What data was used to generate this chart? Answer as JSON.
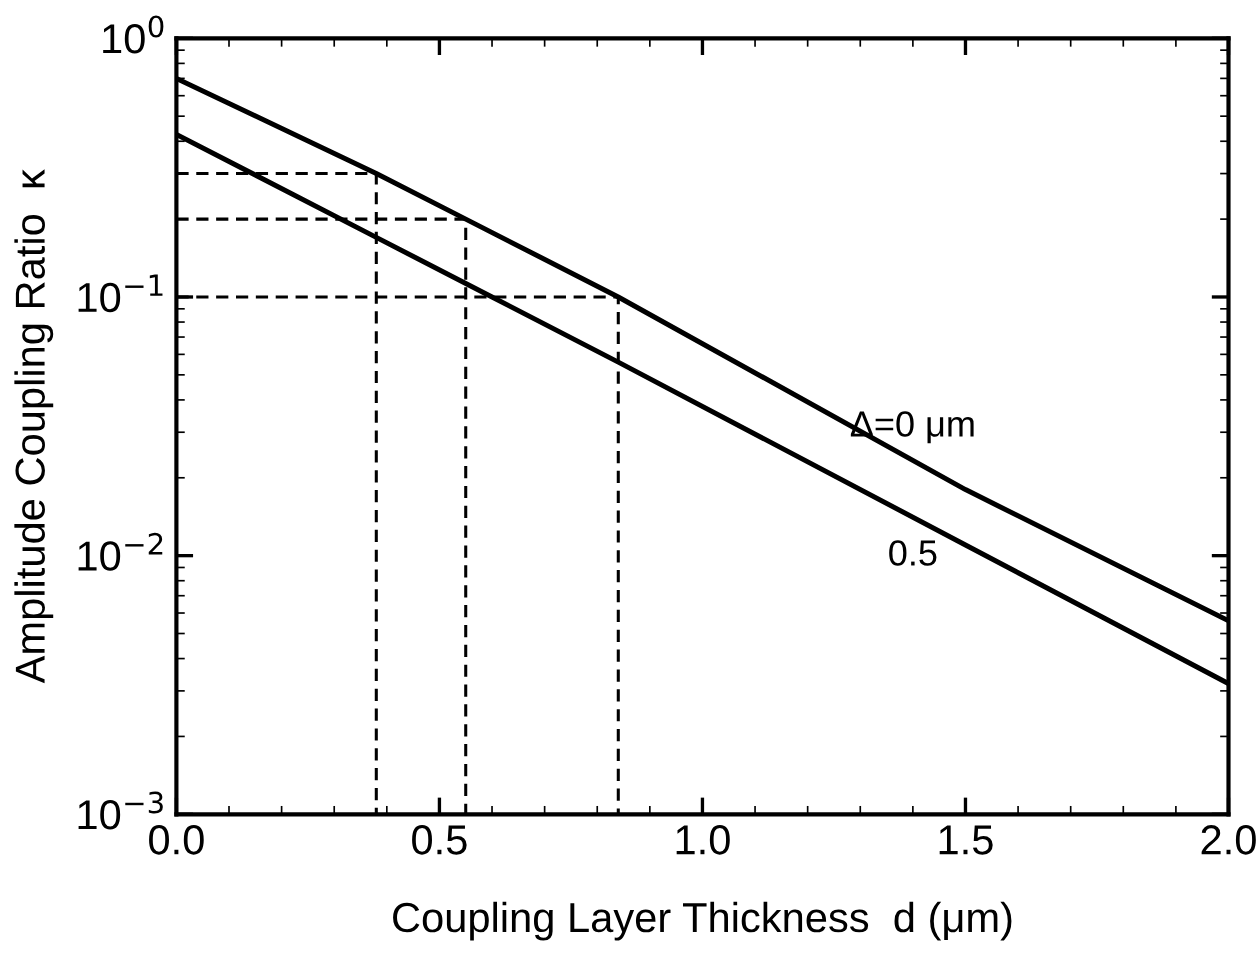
{
  "chart_data": {
    "type": "line",
    "xlabel": "Coupling Layer Thickness  d (μm)",
    "ylabel": "Amplitude Coupling Ratio  κ",
    "log": "y",
    "xlim": [
      0,
      2.0
    ],
    "ylim": [
      0.001,
      1
    ],
    "xticks": [
      {
        "value": 0,
        "label": "0.0"
      },
      0.5,
      {
        "value": 1,
        "label": "1.0"
      },
      1.5,
      {
        "value": 2,
        "label": "2.0"
      }
    ],
    "yticks": [
      {
        "value": 0.001,
        "label": "10$^{−3}$"
      },
      {
        "value": 0.01,
        "label": "10$^{−2}$"
      },
      {
        "value": 0.1,
        "label": "10$^{−1}$"
      },
      {
        "value": 1,
        "label": "10$^{0}$"
      }
    ],
    "grid": false,
    "legend": false,
    "marker": "none",
    "series": [
      {
        "name": "Δ=0 μm",
        "color": "#000000",
        "line_style": "solid",
        "x": [
          0,
          0.38,
          0.55,
          0.84,
          1.5,
          2.0
        ],
        "values": [
          0.7,
          0.3,
          0.2,
          0.1,
          0.018,
          0.0056
        ]
      },
      {
        "name": "0.5",
        "color": "#000000",
        "line_style": "solid",
        "x": [
          0,
          0.38,
          0.6,
          0.84,
          1.5,
          2.0
        ],
        "values": [
          0.425,
          0.17,
          0.1,
          0.056,
          0.011,
          0.0032
        ]
      },
      {
        "color": "#000000",
        "line_style": "dashed",
        "x": [
          0,
          0.38,
          0.38
        ],
        "values": [
          0.3,
          0.3,
          0.001
        ]
      },
      {
        "color": "#000000",
        "line_style": "dashed",
        "x": [
          0,
          0.55,
          0.55
        ],
        "values": [
          0.2,
          0.2,
          0.001
        ]
      },
      {
        "color": "#000000",
        "line_style": "dashed",
        "x": [
          0,
          0.84,
          0.84
        ],
        "values": [
          0.1,
          0.1,
          0.001
        ]
      }
    ]
  }
}
